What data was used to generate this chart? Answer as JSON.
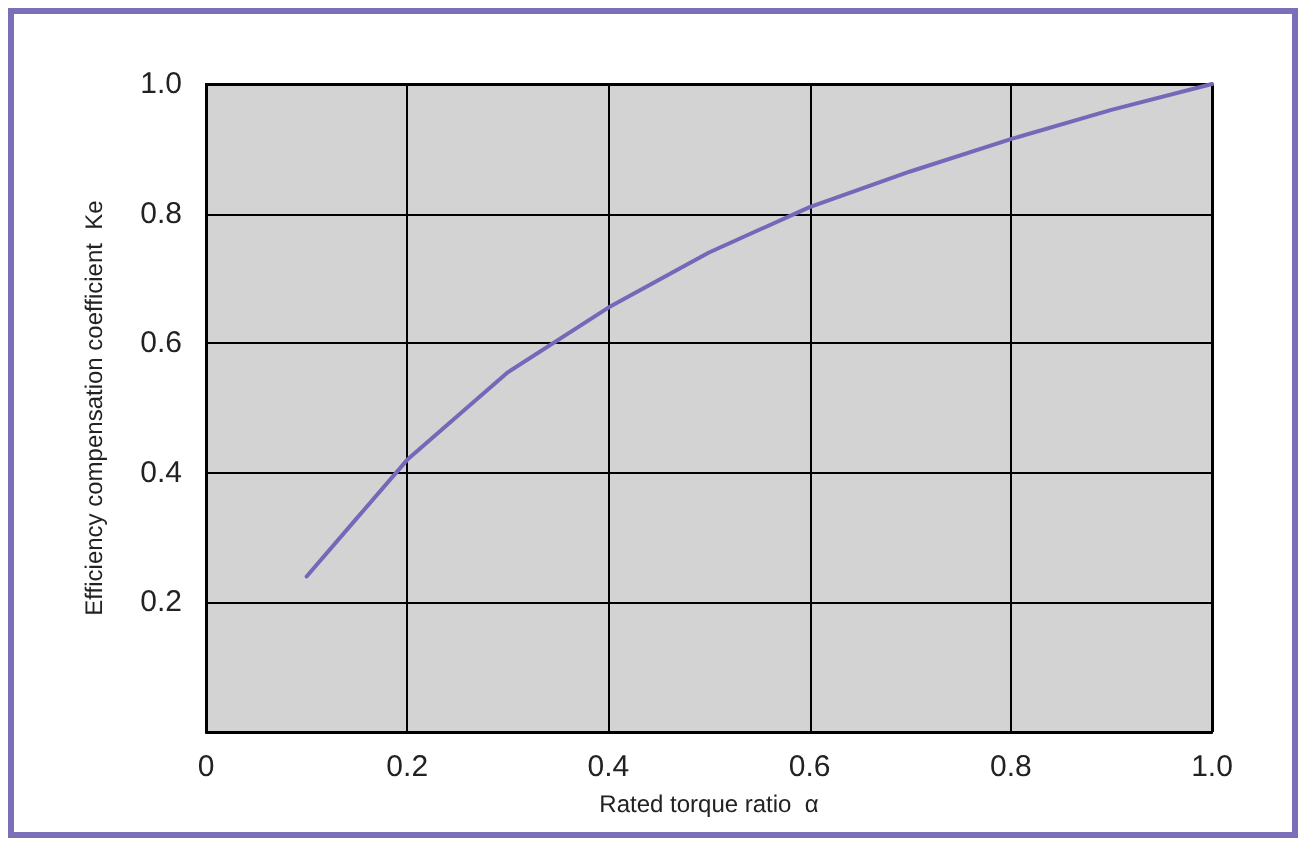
{
  "chart_data": {
    "type": "line",
    "xlabel": "Rated torque ratio  α",
    "ylabel": "Efficiency compensation coefficient  Ke",
    "x": [
      0.1,
      0.15,
      0.2,
      0.3,
      0.4,
      0.5,
      0.6,
      0.7,
      0.8,
      0.9,
      1.0
    ],
    "series": [
      {
        "color": "#7468b8",
        "values": [
          0.24,
          0.33,
          0.42,
          0.555,
          0.655,
          0.74,
          0.81,
          0.865,
          0.915,
          0.96,
          1.0
        ]
      }
    ],
    "xlim": [
      0,
      1
    ],
    "ylim": [
      0,
      1
    ],
    "xticks": [
      0,
      0.2,
      0.4,
      0.6,
      0.8,
      {
        "value": 1,
        "label": "1.0"
      }
    ],
    "yticks": [
      0.2,
      0.4,
      0.6,
      0.8,
      {
        "value": 1,
        "label": "1.0"
      }
    ],
    "grid": true,
    "marker": "none",
    "line_style": "solid"
  }
}
